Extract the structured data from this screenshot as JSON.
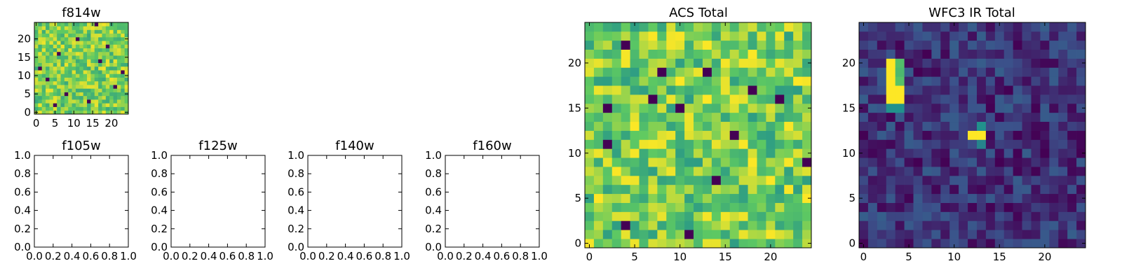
{
  "figure": {
    "background": "#ffffff",
    "frame_color": "#000000"
  },
  "colormap": {
    "name": "viridis",
    "stops": [
      "#440154",
      "#3b528b",
      "#21918c",
      "#5ec962",
      "#fde725"
    ]
  },
  "chart_data": [
    {
      "id": "f814w",
      "type": "heatmap",
      "title": "f814w",
      "size": 25,
      "xlim": [
        -0.5,
        24.5
      ],
      "ylim": [
        -0.5,
        24.5
      ],
      "xticks": [
        0,
        5,
        10,
        15,
        20
      ],
      "yticks": [
        0,
        5,
        10,
        15,
        20
      ],
      "value_range": [
        0,
        1
      ],
      "background_level": [
        0.6,
        0.98
      ],
      "hot_pixels": [
        [
          1,
          12
        ],
        [
          3,
          9
        ],
        [
          6,
          16
        ],
        [
          8,
          5
        ],
        [
          11,
          20
        ],
        [
          14,
          3
        ],
        [
          17,
          14
        ],
        [
          19,
          18
        ],
        [
          21,
          7
        ],
        [
          23,
          11
        ],
        [
          16,
          24
        ],
        [
          5,
          2
        ]
      ],
      "grid": false,
      "colorbar": false
    },
    {
      "id": "f105w",
      "type": "empty",
      "title": "f105w",
      "xlim": [
        0,
        1
      ],
      "ylim": [
        0,
        1
      ],
      "ticks": [
        0.0,
        0.2,
        0.4,
        0.6,
        0.8,
        1.0
      ],
      "tick_labels": [
        "0.0",
        "0.2",
        "0.4",
        "0.6",
        "0.8",
        "1.0"
      ]
    },
    {
      "id": "f125w",
      "type": "empty",
      "title": "f125w",
      "xlim": [
        0,
        1
      ],
      "ylim": [
        0,
        1
      ],
      "ticks": [
        0.0,
        0.2,
        0.4,
        0.6,
        0.8,
        1.0
      ],
      "tick_labels": [
        "0.0",
        "0.2",
        "0.4",
        "0.6",
        "0.8",
        "1.0"
      ]
    },
    {
      "id": "f140w",
      "type": "empty",
      "title": "f140w",
      "xlim": [
        0,
        1
      ],
      "ylim": [
        0,
        1
      ],
      "ticks": [
        0.0,
        0.2,
        0.4,
        0.6,
        0.8,
        1.0
      ],
      "tick_labels": [
        "0.0",
        "0.2",
        "0.4",
        "0.6",
        "0.8",
        "1.0"
      ]
    },
    {
      "id": "f160w",
      "type": "empty",
      "title": "f160w",
      "xlim": [
        0,
        1
      ],
      "ylim": [
        0,
        1
      ],
      "ticks": [
        0.0,
        0.2,
        0.4,
        0.6,
        0.8,
        1.0
      ],
      "tick_labels": [
        "0.0",
        "0.2",
        "0.4",
        "0.6",
        "0.8",
        "1.0"
      ]
    },
    {
      "id": "acs-total",
      "type": "heatmap",
      "title": "ACS Total",
      "size": 25,
      "xlim": [
        -0.5,
        24.5
      ],
      "ylim": [
        -0.5,
        24.5
      ],
      "xticks": [
        0,
        5,
        10,
        15,
        20
      ],
      "yticks": [
        0,
        5,
        10,
        15,
        20
      ],
      "value_range": [
        0,
        1
      ],
      "background_level": [
        0.55,
        1.0
      ],
      "hot_pixels": [
        [
          2,
          15
        ],
        [
          2,
          11
        ],
        [
          4,
          22
        ],
        [
          7,
          16
        ],
        [
          8,
          19
        ],
        [
          10,
          15
        ],
        [
          11,
          1
        ],
        [
          14,
          7
        ],
        [
          16,
          12
        ],
        [
          18,
          17
        ],
        [
          21,
          16
        ],
        [
          24,
          9
        ],
        [
          4,
          2
        ],
        [
          13,
          19
        ]
      ],
      "grid": false,
      "colorbar": false
    },
    {
      "id": "wfc3-ir-total",
      "type": "heatmap",
      "title": "WFC3 IR Total",
      "size": 25,
      "xlim": [
        -0.5,
        24.5
      ],
      "ylim": [
        -0.5,
        24.5
      ],
      "xticks": [
        0,
        5,
        10,
        15,
        20
      ],
      "yticks": [
        0,
        5,
        10,
        15,
        20
      ],
      "value_range": [
        0,
        1
      ],
      "background_level": [
        0.0,
        0.3
      ],
      "sources": [
        {
          "x": 3,
          "y": 20,
          "value": 1.0
        },
        {
          "x": 3,
          "y": 19,
          "value": 1.0
        },
        {
          "x": 3,
          "y": 18,
          "value": 1.0
        },
        {
          "x": 3,
          "y": 17,
          "value": 1.0
        },
        {
          "x": 3,
          "y": 16,
          "value": 1.0
        },
        {
          "x": 4,
          "y": 16,
          "value": 1.0
        },
        {
          "x": 4,
          "y": 17,
          "value": 1.0
        },
        {
          "x": 4,
          "y": 18,
          "value": 0.72
        },
        {
          "x": 4,
          "y": 19,
          "value": 0.68
        },
        {
          "x": 4,
          "y": 20,
          "value": 0.7
        },
        {
          "x": 3,
          "y": 15,
          "value": 0.5
        },
        {
          "x": 4,
          "y": 15,
          "value": 0.5
        },
        {
          "x": 12,
          "y": 12,
          "value": 1.0
        },
        {
          "x": 13,
          "y": 12,
          "value": 1.0
        },
        {
          "x": 13,
          "y": 13,
          "value": 0.5
        },
        {
          "x": 13,
          "y": 11,
          "value": 0.45
        }
      ],
      "grid": false,
      "colorbar": false
    }
  ]
}
